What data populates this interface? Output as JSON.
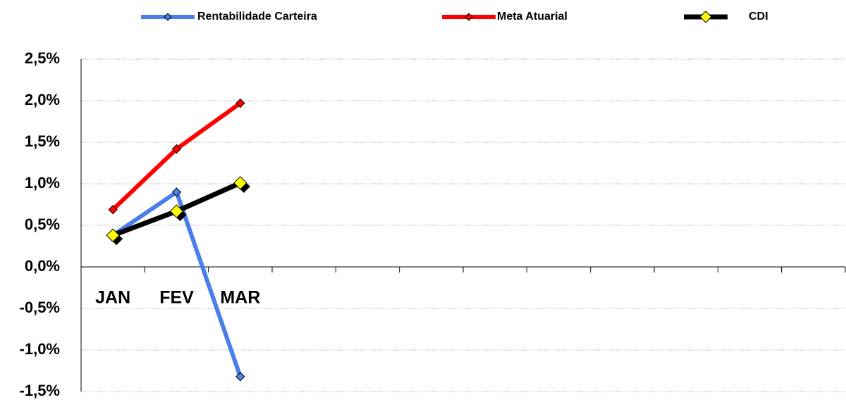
{
  "chart_data": {
    "type": "line",
    "categories": [
      "JAN",
      "FEV",
      "MAR",
      null,
      null,
      null,
      null,
      null,
      null,
      null,
      null,
      null
    ],
    "series": [
      {
        "name": "Rentabilidade Carteira",
        "color": "#4a7ee8",
        "values": [
          0.38,
          0.9,
          -1.32,
          null,
          null,
          null,
          null,
          null,
          null,
          null,
          null,
          null
        ]
      },
      {
        "name": "Meta Atuarial",
        "color": "#ff0000",
        "values": [
          0.69,
          1.42,
          1.97,
          null,
          null,
          null,
          null,
          null,
          null,
          null,
          null,
          null
        ]
      },
      {
        "name": "CDI",
        "color": "#000000",
        "marker_color": "#ffff00",
        "values": [
          0.38,
          0.67,
          1.01,
          null,
          null,
          null,
          null,
          null,
          null,
          null,
          null,
          null
        ]
      }
    ],
    "ylim": [
      -1.5,
      2.5
    ],
    "yticks": [
      {
        "value": -1.5,
        "label": "-1,5%"
      },
      {
        "value": -1.0,
        "label": "-1,0%"
      },
      {
        "value": -0.5,
        "label": "-0,5%"
      },
      {
        "value": 0,
        "label": "0,0%"
      },
      {
        "value": 0.5,
        "label": "0,5%"
      },
      {
        "value": 1.0,
        "label": "1,0%"
      },
      {
        "value": 1.5,
        "label": "1,5%"
      },
      {
        "value": 2.0,
        "label": "2,0%"
      },
      {
        "value": 2.5,
        "label": "2,5%"
      }
    ],
    "grid": true,
    "legend": "top"
  }
}
